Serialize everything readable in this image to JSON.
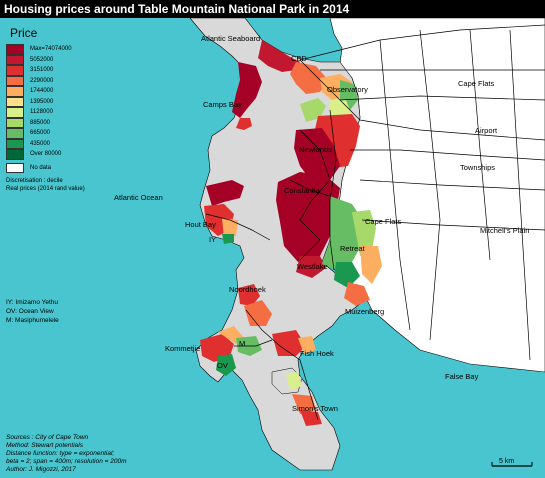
{
  "title": "Housing prices around Table Mountain National Park in 2014",
  "legend": {
    "title": "Price",
    "classes": [
      {
        "label": "Max=74074000",
        "color": "#a50026"
      },
      {
        "label": "5052000",
        "color": "#c2182f"
      },
      {
        "label": "3151000",
        "color": "#df2f2f"
      },
      {
        "label": "2290000",
        "color": "#f46d43"
      },
      {
        "label": "1744000",
        "color": "#fdae61"
      },
      {
        "label": "1395000",
        "color": "#fee08b"
      },
      {
        "label": "1128000",
        "color": "#d9ef8b"
      },
      {
        "label": "885000",
        "color": "#a6d96a"
      },
      {
        "label": "665000",
        "color": "#66bd63"
      },
      {
        "label": "435000",
        "color": "#1a9850"
      },
      {
        "label": "Over 80000",
        "color": "#006837"
      }
    ],
    "nodata": {
      "label": "No data",
      "color": "#ffffff"
    },
    "note_line1": "Discretisation : decile",
    "note_line2": "Real prices (2014 rand value)"
  },
  "abbreviations": [
    "IY: Imizamo Yethu",
    "OV: Ocean View",
    "M: Masiphumelele"
  ],
  "credits": [
    "Sources : City of Cape Town",
    "Method: Stewart potentials",
    "Distance function: type = exponential;",
    "beta = 2; span = 400m; resolution = 200m",
    "Author: J. Migozzi, 2017"
  ],
  "scale_bar": "5 km",
  "places": {
    "atlantic_seaboard": "Atlantic Seaboard",
    "cbd": "CBD",
    "observatory": "Observatory",
    "camps_bay": "Camps Bay",
    "newlands": "Newlands",
    "constantia": "Constantia",
    "atlantic_ocean": "Atlantic Ocean",
    "hout_bay": "Hout Bay",
    "iy": "IY",
    "retreat": "Retreat",
    "cape_flats_small": "Cape Flats",
    "westlake": "Westlake",
    "muizenberg": "Muizenberg",
    "noordhoek": "Noordhoek",
    "kommetjie": "Kommetjie",
    "m": "M",
    "ov": "OV",
    "fish_hoek": "Fish Hoek",
    "false_bay": "False Bay",
    "simons_town": "Simon's Town",
    "cape_flats": "Cape Flats",
    "airport": "Airport",
    "townships": "Townships",
    "mitchells_plain": "Mitchell's Plain"
  },
  "colors": {
    "ocean": "#48c5ce",
    "land": "#d9d9d9",
    "mainland": "#ffffff",
    "roads": "#000000"
  }
}
